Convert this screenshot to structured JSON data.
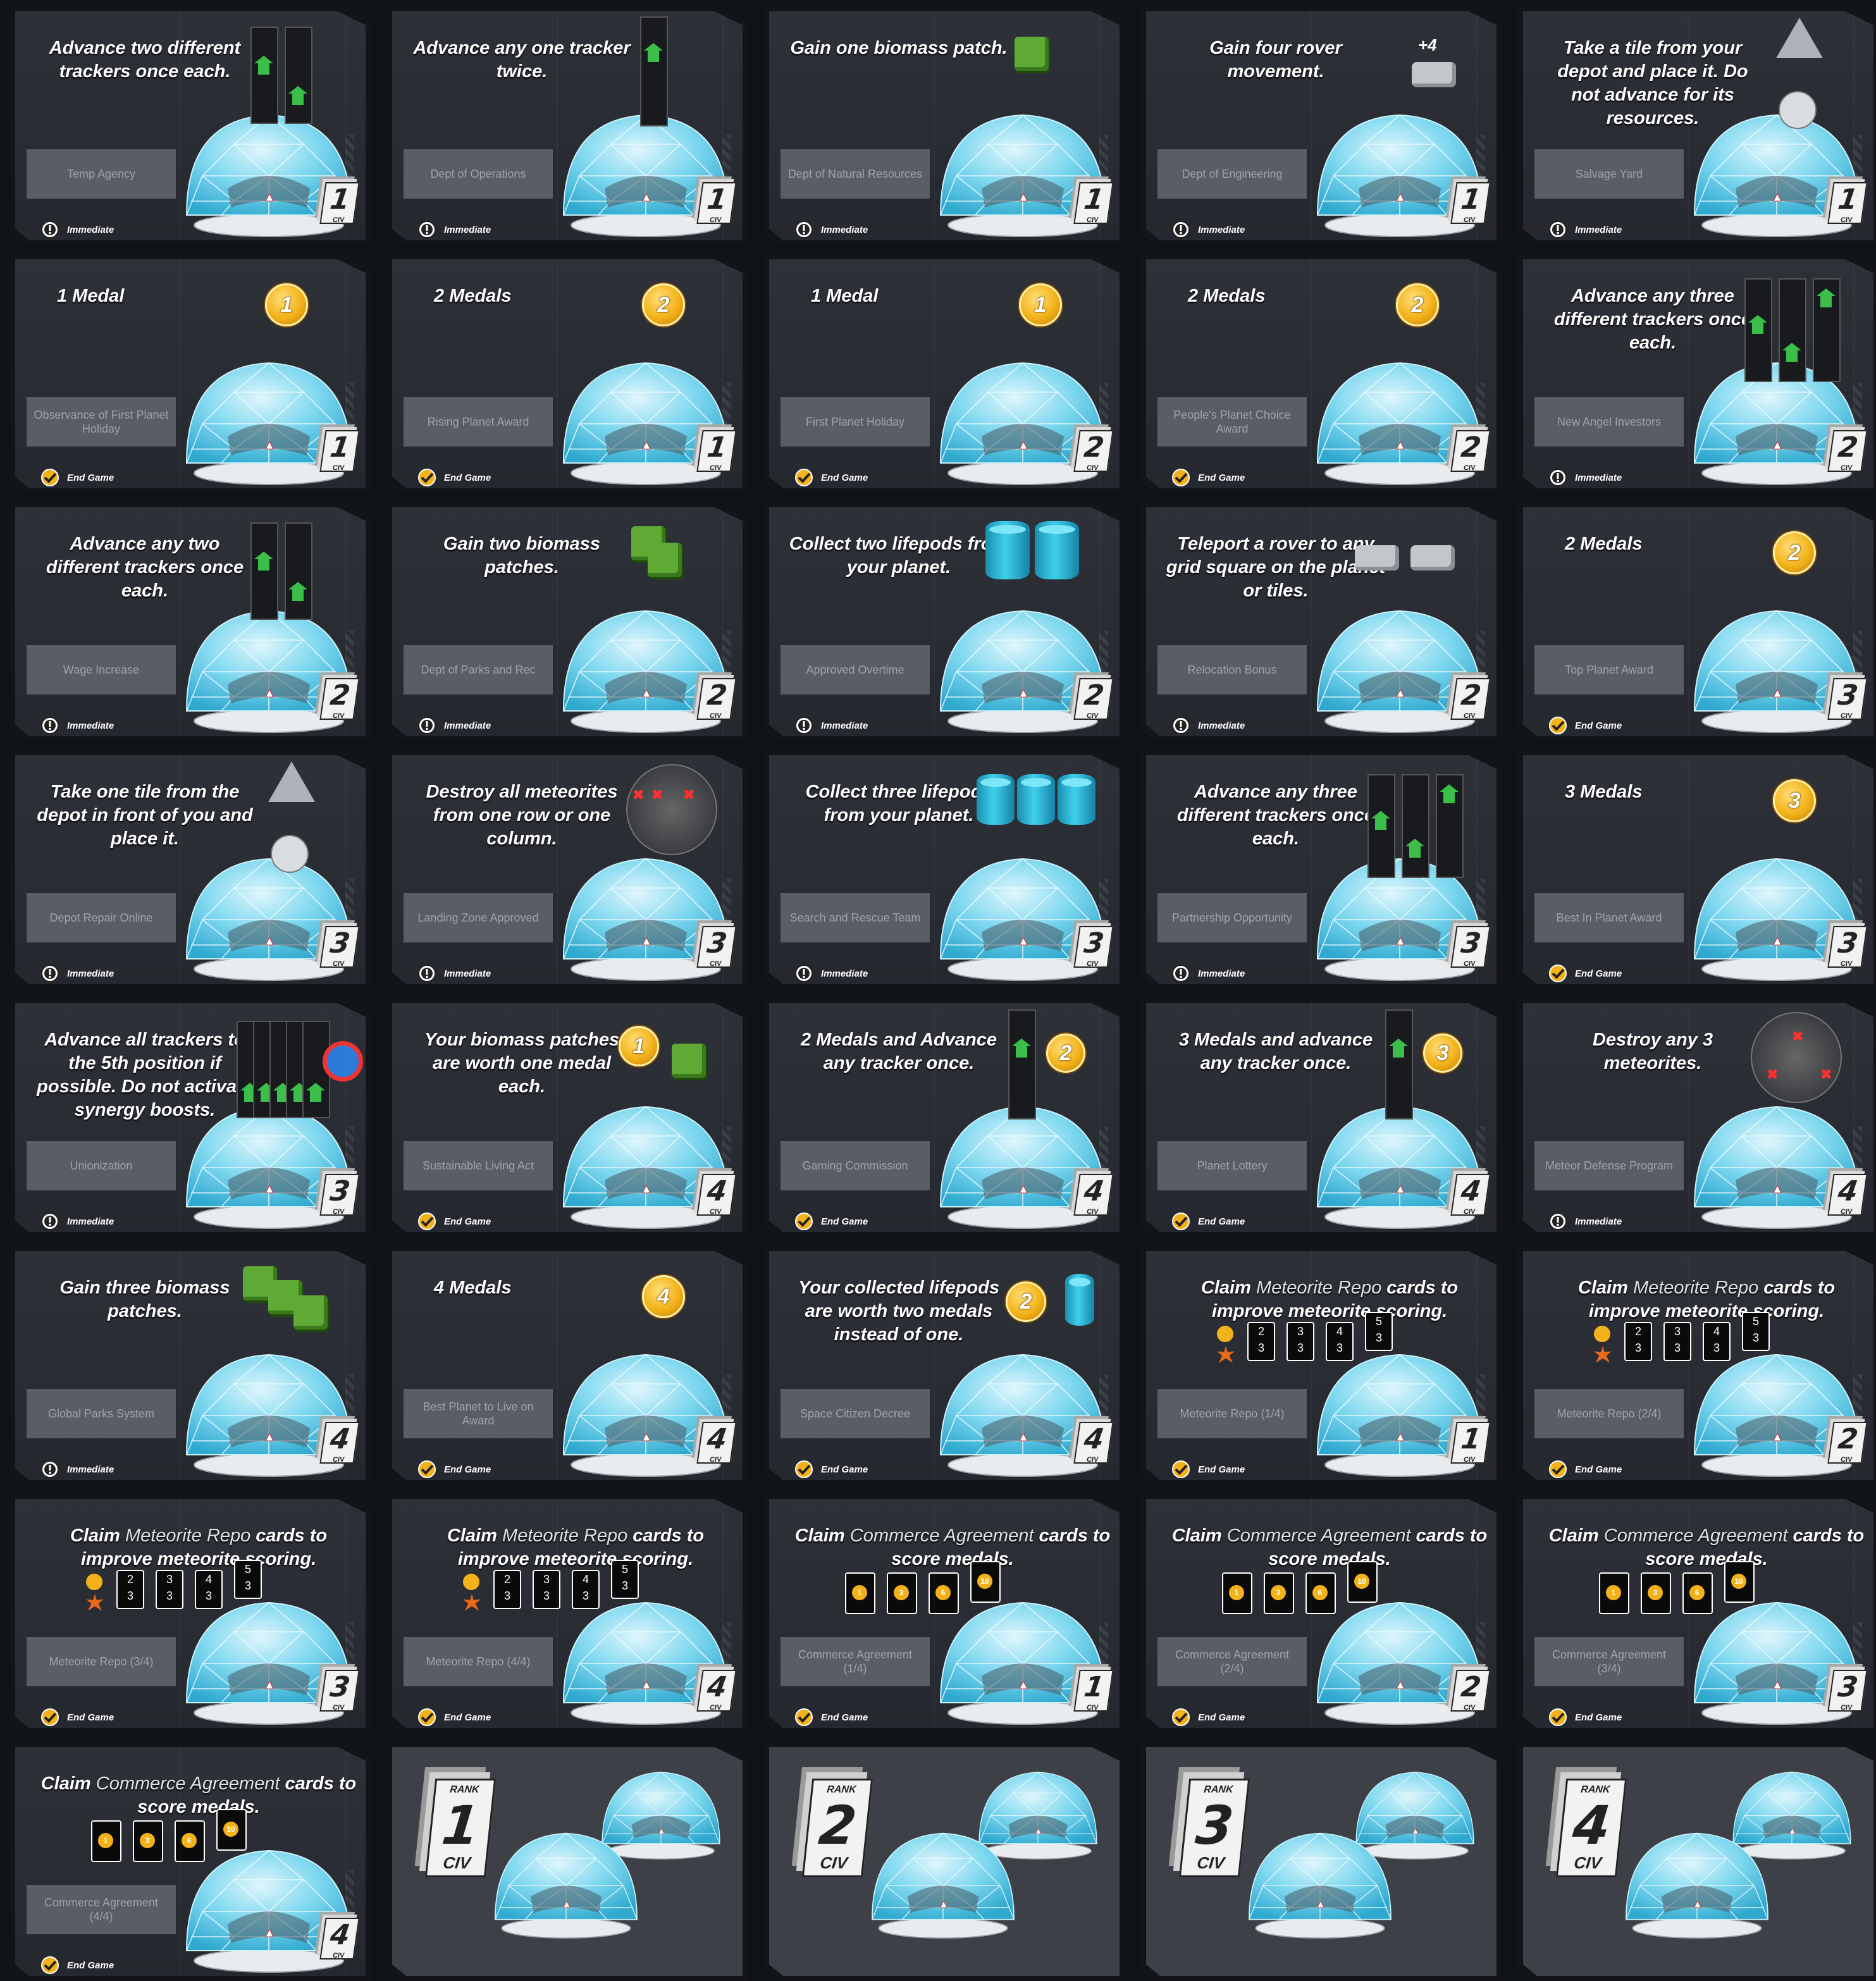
{
  "labels": {
    "immediate": "Immediate",
    "end_game": "End Game",
    "civ": "CIV",
    "rank": "RANK"
  },
  "colors": {
    "card_bg": "#2a2d33",
    "namebox": "#5a5d63",
    "medal": "#f3b21a",
    "tracker_arrow": "#3cbf4a",
    "dome": "#7fd8ef"
  },
  "cards": [
    {
      "id": "c01",
      "text": "Advance two different trackers once each.",
      "name": "Temp Agency",
      "rank": "1",
      "timing": "immediate",
      "icon": "trackers-2"
    },
    {
      "id": "c02",
      "text": "Advance any one tracker twice.",
      "name": "Dept of Operations",
      "rank": "1",
      "timing": "immediate",
      "icon": "tracker-twice"
    },
    {
      "id": "c03",
      "text": "Gain one biomass patch.",
      "name": "Dept of Natural Resources",
      "rank": "1",
      "timing": "immediate",
      "icon": "biomass-1"
    },
    {
      "id": "c04",
      "text": "Gain four rover movement.",
      "name": "Dept of Engineering",
      "rank": "1",
      "timing": "immediate",
      "icon": "rover-move",
      "extra": "+4"
    },
    {
      "id": "c05",
      "text": "Take a tile from your depot and place it. Do not advance for its resources.",
      "name": "Salvage Yard",
      "rank": "1",
      "timing": "immediate",
      "icon": "tile-place"
    },
    {
      "id": "c06",
      "text": "1 Medal",
      "name": "Observance of First Planet Holiday",
      "rank": "1",
      "timing": "end",
      "icon": "medal",
      "medal": "1"
    },
    {
      "id": "c07",
      "text": "2 Medals",
      "name": "Rising Planet Award",
      "rank": "1",
      "timing": "end",
      "icon": "medal",
      "medal": "2"
    },
    {
      "id": "c08",
      "text": "1 Medal",
      "name": "First Planet Holiday",
      "rank": "2",
      "timing": "end",
      "icon": "medal",
      "medal": "1"
    },
    {
      "id": "c09",
      "text": "2 Medals",
      "name": "People's Planet Choice Award",
      "rank": "2",
      "timing": "end",
      "icon": "medal",
      "medal": "2"
    },
    {
      "id": "c10",
      "text": "Advance any three different trackers once each.",
      "name": "New Angel Investors",
      "rank": "2",
      "timing": "immediate",
      "icon": "trackers-3"
    },
    {
      "id": "c11",
      "text": "Advance any two different trackers once each.",
      "name": "Wage Increase",
      "rank": "2",
      "timing": "immediate",
      "icon": "trackers-2"
    },
    {
      "id": "c12",
      "text": "Gain two biomass patches.",
      "name": "Dept of Parks and Rec",
      "rank": "2",
      "timing": "immediate",
      "icon": "biomass-2"
    },
    {
      "id": "c13",
      "text": "Collect two lifepods from your planet.",
      "name": "Approved Overtime",
      "rank": "2",
      "timing": "immediate",
      "icon": "lifepod-2"
    },
    {
      "id": "c14",
      "text": "Teleport a rover to any grid square on the planet or tiles.",
      "name": "Relocation Bonus",
      "rank": "2",
      "timing": "immediate",
      "icon": "teleport"
    },
    {
      "id": "c15",
      "text": "2 Medals",
      "name": "Top Planet Award",
      "rank": "3",
      "timing": "end",
      "icon": "medal",
      "medal": "2"
    },
    {
      "id": "c16",
      "text": "Take one tile from the depot in front of you and place it.",
      "name": "Depot Repair Online",
      "rank": "3",
      "timing": "immediate",
      "icon": "tile-place"
    },
    {
      "id": "c17",
      "text": "Destroy all meteorites from one row or one column.",
      "name": "Landing Zone Approved",
      "rank": "3",
      "timing": "immediate",
      "icon": "meteor-row"
    },
    {
      "id": "c18",
      "text": "Collect three lifepods from your planet.",
      "name": "Search and Rescue Team",
      "rank": "3",
      "timing": "immediate",
      "icon": "lifepod-3"
    },
    {
      "id": "c19",
      "text": "Advance any three different trackers once each.",
      "name": "Partnership Opportunity",
      "rank": "3",
      "timing": "immediate",
      "icon": "trackers-3"
    },
    {
      "id": "c20",
      "text": "3 Medals",
      "name": "Best In Planet Award",
      "rank": "3",
      "timing": "end",
      "icon": "medal",
      "medal": "3"
    },
    {
      "id": "c21",
      "text": "Advance all trackers to the 5th position if possible.  Do not activate synergy boosts.",
      "name": "Unionization",
      "rank": "3",
      "timing": "immediate",
      "icon": "trackers-all"
    },
    {
      "id": "c22",
      "text": "Your biomass patches are worth one medal each.",
      "name": "Sustainable Living Act",
      "rank": "4",
      "timing": "end",
      "icon": "medal-biomass",
      "medal": "1"
    },
    {
      "id": "c23",
      "text": "2 Medals and Advance any tracker once.",
      "name": "Gaming Commission",
      "rank": "4",
      "timing": "end",
      "icon": "medal-tracker",
      "medal": "2"
    },
    {
      "id": "c24",
      "text": "3 Medals and advance any tracker once.",
      "name": "Planet Lottery",
      "rank": "4",
      "timing": "end",
      "icon": "medal-tracker",
      "medal": "3"
    },
    {
      "id": "c25",
      "text": "Destroy any 3 meteorites.",
      "name": "Meteor Defense Program",
      "rank": "4",
      "timing": "immediate",
      "icon": "meteor-3"
    },
    {
      "id": "c26",
      "text": "Gain three biomass patches.",
      "name": "Global Parks System",
      "rank": "4",
      "timing": "immediate",
      "icon": "biomass-3"
    },
    {
      "id": "c27",
      "text": "4 Medals",
      "name": "Best Planet to Live on Award",
      "rank": "4",
      "timing": "end",
      "icon": "medal",
      "medal": "4"
    },
    {
      "id": "c28",
      "text": "Your collected lifepods are worth two medals instead of one.",
      "name": "Space Citizen Decree",
      "rank": "4",
      "timing": "end",
      "icon": "medal-lifepod",
      "medal": "2"
    },
    {
      "id": "c29",
      "text_a": "Claim",
      "text_hl": "Meteorite Repo",
      "text_b": "cards to improve meteorite scoring.",
      "name": "Meteorite Repo (1/4)",
      "rank": "1",
      "timing": "end",
      "icon": "repo"
    },
    {
      "id": "c30",
      "text_a": "Claim",
      "text_hl": "Meteorite Repo",
      "text_b": "cards to improve meteorite scoring.",
      "name": "Meteorite Repo (2/4)",
      "rank": "2",
      "timing": "end",
      "icon": "repo"
    },
    {
      "id": "c31",
      "text_a": "Claim",
      "text_hl": "Meteorite Repo",
      "text_b": "cards to improve meteorite scoring.",
      "name": "Meteorite Repo (3/4)",
      "rank": "3",
      "timing": "end",
      "icon": "repo"
    },
    {
      "id": "c32",
      "text_a": "Claim",
      "text_hl": "Meteorite Repo",
      "text_b": "cards to improve meteorite scoring.",
      "name": "Meteorite Repo (4/4)",
      "rank": "4",
      "timing": "end",
      "icon": "repo"
    },
    {
      "id": "c33",
      "text_a": "Claim",
      "text_hl": "Commerce Agreement",
      "text_b": "cards to score medals.",
      "name": "Commerce Agreement (1/4)",
      "rank": "1",
      "timing": "end",
      "icon": "commerce"
    },
    {
      "id": "c34",
      "text_a": "Claim",
      "text_hl": "Commerce Agreement",
      "text_b": "cards to score medals.",
      "name": "Commerce Agreement (2/4)",
      "rank": "2",
      "timing": "end",
      "icon": "commerce"
    },
    {
      "id": "c35",
      "text_a": "Claim",
      "text_hl": "Commerce Agreement",
      "text_b": "cards to score medals.",
      "name": "Commerce Agreement (3/4)",
      "rank": "3",
      "timing": "end",
      "icon": "commerce"
    },
    {
      "id": "c36",
      "text_a": "Claim",
      "text_hl": "Commerce Agreement",
      "text_b": "cards to score medals.",
      "name": "Commerce Agreement (4/4)",
      "rank": "4",
      "timing": "end",
      "icon": "commerce"
    },
    {
      "id": "b1",
      "back": true,
      "rank": "1"
    },
    {
      "id": "b2",
      "back": true,
      "rank": "2"
    },
    {
      "id": "b3",
      "back": true,
      "rank": "3"
    },
    {
      "id": "b4",
      "back": true,
      "rank": "4"
    }
  ],
  "repo_cards": [
    {
      "top": "2",
      "bot": "3"
    },
    {
      "top": "3",
      "bot": "3"
    },
    {
      "top": "4",
      "bot": "3"
    },
    {
      "top": "5",
      "bot": "3"
    }
  ],
  "commerce_values": [
    "1",
    "3",
    "6",
    "10"
  ]
}
